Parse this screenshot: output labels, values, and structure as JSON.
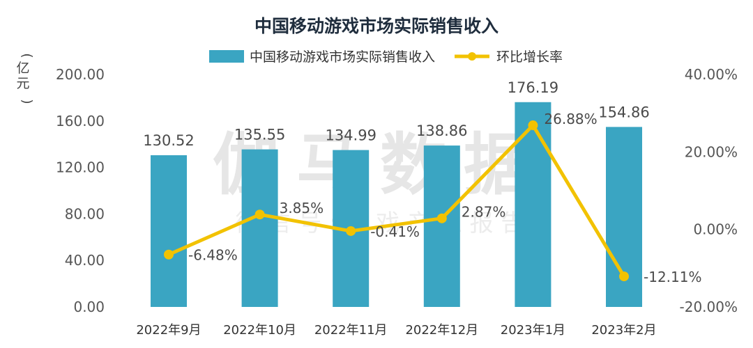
{
  "watermark": {
    "main": "伽马数据",
    "sub": "微 信 号 : 游 戏 产 业 报 告"
  },
  "colors": {
    "bar": "#3aa5c2",
    "line": "#f2c200",
    "text": "#333333",
    "title": "#1f2d3d"
  },
  "chart_data": {
    "type": "bar",
    "title": "中国移动游戏市场实际销售收入",
    "categories": [
      "2022年9月",
      "2022年10月",
      "2022年11月",
      "2022年12月",
      "2023年1月",
      "2023年2月"
    ],
    "series": [
      {
        "name": "中国移动游戏市场实际销售收入",
        "type": "bar",
        "axis": "left",
        "values": [
          130.52,
          135.55,
          134.99,
          138.86,
          176.19,
          154.86
        ],
        "labels": [
          "130.52",
          "135.55",
          "134.99",
          "138.86",
          "176.19",
          "154.86"
        ]
      },
      {
        "name": "环比增长率",
        "type": "line",
        "axis": "right",
        "values": [
          -6.48,
          3.85,
          -0.41,
          2.87,
          26.88,
          -12.11
        ],
        "labels": [
          "-6.48%",
          "3.85%",
          "-0.41%",
          "2.87%",
          "26.88%",
          "-12.11%"
        ]
      }
    ],
    "y_left": {
      "label": "亿元",
      "unit_open": "(",
      "unit_close": ")",
      "ylim": [
        0,
        200
      ],
      "ticks": [
        0,
        40,
        80,
        120,
        160,
        200
      ],
      "tick_labels": [
        "0.00",
        "40.00",
        "80.00",
        "120.00",
        "160.00",
        "200.00"
      ]
    },
    "y_right": {
      "ylim": [
        -20,
        40
      ],
      "ticks": [
        -20,
        0,
        20,
        40
      ],
      "tick_labels": [
        "-20.00%",
        "0.00%",
        "20.00%",
        "40.00%"
      ]
    },
    "legend": "top-center",
    "grid": false
  }
}
